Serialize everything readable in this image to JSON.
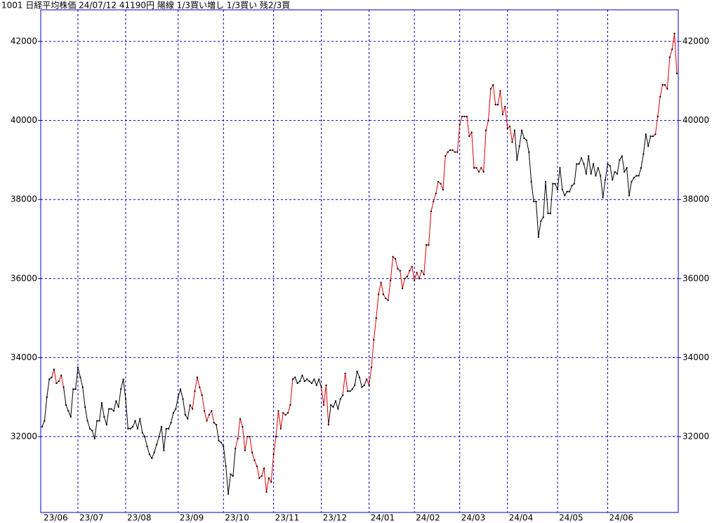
{
  "chart_data": {
    "type": "line",
    "title": "1001 日経平均株価 24/07/12 41190円 陽線 1/3買い増し 1/3買い 残2/3買",
    "ylim": [
      30080,
      42800
    ],
    "yticks": [
      32000,
      34000,
      36000,
      38000,
      40000,
      42000
    ],
    "grid": true,
    "frame_color": "#0000c0",
    "marker_color": "#000000",
    "categories": [
      "23/06",
      null,
      null,
      null,
      null,
      null,
      null,
      null,
      null,
      null,
      null,
      null,
      null,
      null,
      null,
      "23/07",
      null,
      null,
      null,
      null,
      null,
      null,
      null,
      null,
      null,
      null,
      null,
      null,
      null,
      null,
      null,
      null,
      null,
      null,
      null,
      "23/08",
      null,
      null,
      null,
      null,
      null,
      null,
      null,
      null,
      null,
      null,
      null,
      null,
      null,
      null,
      null,
      null,
      null,
      null,
      null,
      null,
      null,
      "23/09",
      null,
      null,
      null,
      null,
      null,
      null,
      null,
      null,
      null,
      null,
      null,
      null,
      null,
      null,
      null,
      null,
      null,
      null,
      "23/10",
      null,
      null,
      null,
      null,
      null,
      null,
      null,
      null,
      null,
      null,
      null,
      null,
      null,
      null,
      null,
      null,
      null,
      null,
      null,
      null,
      "23/11",
      null,
      null,
      null,
      null,
      null,
      null,
      null,
      null,
      null,
      null,
      null,
      null,
      null,
      null,
      null,
      null,
      null,
      null,
      null,
      "23/12",
      null,
      null,
      null,
      null,
      null,
      null,
      null,
      null,
      null,
      null,
      null,
      null,
      null,
      null,
      null,
      null,
      null,
      null,
      null,
      "24/01",
      null,
      null,
      null,
      null,
      null,
      null,
      null,
      null,
      null,
      null,
      null,
      null,
      null,
      null,
      null,
      null,
      null,
      null,
      "24/02",
      null,
      null,
      null,
      null,
      null,
      null,
      null,
      null,
      null,
      null,
      null,
      null,
      null,
      null,
      null,
      null,
      null,
      null,
      "24/03",
      null,
      null,
      null,
      null,
      null,
      null,
      null,
      null,
      null,
      null,
      null,
      null,
      null,
      null,
      null,
      null,
      null,
      null,
      null,
      "24/04",
      null,
      null,
      null,
      null,
      null,
      null,
      null,
      null,
      null,
      null,
      null,
      null,
      null,
      null,
      null,
      null,
      null,
      null,
      null,
      null,
      "24/05",
      null,
      null,
      null,
      null,
      null,
      null,
      null,
      null,
      null,
      null,
      null,
      null,
      null,
      null,
      null,
      null,
      null,
      null,
      null,
      null,
      "24/06",
      null,
      null,
      null,
      null,
      null,
      null,
      null,
      null,
      null,
      null,
      null,
      null,
      null,
      null,
      null,
      null,
      null,
      null,
      null,
      null,
      null,
      null,
      null,
      null,
      null,
      null,
      null,
      null,
      null
    ],
    "values": [
      32250,
      32400,
      33000,
      33450,
      33500,
      33700,
      33350,
      33400,
      33550,
      33250,
      32800,
      32650,
      32500,
      33200,
      33200,
      33750,
      33500,
      33250,
      32750,
      32400,
      32200,
      32150,
      31950,
      32400,
      32400,
      32850,
      32500,
      32300,
      32700,
      32700,
      32650,
      32900,
      32750,
      33200,
      33450,
      32950,
      32200,
      32200,
      32250,
      32400,
      32200,
      32450,
      32100,
      32000,
      31750,
      31550,
      31450,
      31600,
      31800,
      32000,
      32250,
      31650,
      32200,
      32200,
      32350,
      32600,
      32700,
      33000,
      33200,
      32950,
      32550,
      32450,
      32800,
      32700,
      33150,
      33500,
      33250,
      33050,
      32650,
      32400,
      32550,
      32650,
      32350,
      32300,
      31900,
      31850,
      31750,
      31250,
      30550,
      31050,
      31000,
      31700,
      31950,
      32450,
      32250,
      31650,
      32000,
      32000,
      31600,
      31400,
      31250,
      30950,
      31000,
      31200,
      30600,
      30950,
      30850,
      31550,
      32000,
      32650,
      32200,
      32600,
      32550,
      32600,
      32800,
      33450,
      33500,
      33350,
      33400,
      33550,
      33400,
      33450,
      33400,
      33350,
      33450,
      33300,
      33450,
      33250,
      32800,
      33300,
      32300,
      32800,
      32750,
      32900,
      32700,
      32950,
      33050,
      33600,
      33150,
      33150,
      33200,
      33300,
      33650,
      33500,
      33250,
      33300,
      33450,
      33300,
      33750,
      34450,
      35000,
      35600,
      35900,
      35600,
      35500,
      35450,
      35950,
      36550,
      36500,
      36250,
      36200,
      35750,
      36000,
      36050,
      36200,
      36300,
      35950,
      36150,
      36000,
      36200,
      36100,
      36850,
      36850,
      37700,
      37950,
      38150,
      38450,
      38400,
      38250,
      39100,
      39200,
      39250,
      39250,
      39200,
      39200,
      39900,
      40100,
      40100,
      40100,
      39600,
      39700,
      38800,
      38800,
      38700,
      38800,
      38700,
      39750,
      40000,
      40800,
      40900,
      40400,
      40400,
      40750,
      40150,
      40350,
      39800,
      39850,
      39450,
      39750,
      39000,
      39350,
      39750,
      39550,
      39500,
      39200,
      38450,
      37950,
      37950,
      37050,
      37450,
      37550,
      38450,
      37650,
      37650,
      38400,
      38400,
      38250,
      38800,
      38250,
      38100,
      38200,
      38200,
      38350,
      38400,
      38900,
      38900,
      39050,
      38900,
      38650,
      39100,
      38650,
      38900,
      38600,
      38800,
      38600,
      38050,
      38500,
      38900,
      38850,
      38500,
      38700,
      38650,
      39000,
      39100,
      38700,
      38800,
      38100,
      38450,
      38550,
      38600,
      38600,
      38800,
      39150,
      39650,
      39350,
      39600,
      39600,
      39650,
      40100,
      40600,
      40900,
      40900,
      40800,
      41600,
      41800,
      42200,
      41190
    ],
    "colors": [
      "#000",
      "#000",
      "#000",
      "#000",
      "#000",
      "#d00",
      "#d00",
      "#d00",
      "#d00",
      "#d00",
      "#000",
      "#000",
      "#000",
      "#000",
      "#000",
      "#000",
      "#000",
      "#000",
      "#000",
      "#000",
      "#000",
      "#000",
      "#000",
      "#000",
      "#000",
      "#000",
      "#000",
      "#000",
      "#000",
      "#000",
      "#000",
      "#000",
      "#000",
      "#000",
      "#000",
      "#000",
      "#000",
      "#000",
      "#000",
      "#000",
      "#000",
      "#000",
      "#000",
      "#000",
      "#000",
      "#000",
      "#000",
      "#000",
      "#000",
      "#000",
      "#000",
      "#000",
      "#000",
      "#000",
      "#000",
      "#000",
      "#000",
      "#000",
      "#000",
      "#000",
      "#000",
      "#000",
      "#000",
      "#d00",
      "#d00",
      "#d00",
      "#d00",
      "#d00",
      "#d00",
      "#d00",
      "#d00",
      "#d00",
      "#d00",
      "#000",
      "#000",
      "#000",
      "#000",
      "#000",
      "#000",
      "#000",
      "#000",
      "#000",
      "#d00",
      "#d00",
      "#d00",
      "#d00",
      "#d00",
      "#d00",
      "#d00",
      "#d00",
      "#d00",
      "#d00",
      "#d00",
      "#d00",
      "#d00",
      "#d00",
      "#d00",
      "#d00",
      "#d00",
      "#d00",
      "#d00",
      "#d00",
      "#d00",
      "#d00",
      "#d00",
      "#d00",
      "#000",
      "#000",
      "#000",
      "#000",
      "#000",
      "#000",
      "#000",
      "#000",
      "#000",
      "#000",
      "#000",
      "#000",
      "#d00",
      "#d00",
      "#d00",
      "#000",
      "#000",
      "#000",
      "#000",
      "#000",
      "#000",
      "#d00",
      "#d00",
      "#000",
      "#000",
      "#000",
      "#000",
      "#000",
      "#000",
      "#000",
      "#000",
      "#d00",
      "#d00",
      "#d00",
      "#d00",
      "#d00",
      "#d00",
      "#d00",
      "#d00",
      "#d00",
      "#d00",
      "#d00",
      "#d00",
      "#d00",
      "#d00",
      "#d00",
      "#d00",
      "#d00",
      "#d00",
      "#d00",
      "#d00",
      "#d00",
      "#d00",
      "#d00",
      "#d00",
      "#d00",
      "#d00",
      "#d00",
      "#d00",
      "#d00",
      "#d00",
      "#d00",
      "#d00",
      "#d00",
      "#d00",
      "#d00",
      "#d00",
      "#d00",
      "#d00",
      "#d00",
      "#d00",
      "#d00",
      "#d00",
      "#d00",
      "#d00",
      "#d00",
      "#d00",
      "#d00",
      "#d00",
      "#d00",
      "#d00",
      "#d00",
      "#d00",
      "#d00",
      "#d00",
      "#d00",
      "#d00",
      "#d00",
      "#d00",
      "#d00",
      "#d00",
      "#d00",
      "#d00",
      "#000",
      "#000",
      "#000",
      "#000",
      "#000",
      "#000",
      "#000",
      "#000",
      "#000",
      "#000",
      "#000",
      "#000",
      "#000",
      "#000",
      "#000",
      "#000",
      "#000",
      "#000",
      "#000",
      "#000",
      "#000",
      "#000",
      "#000",
      "#000",
      "#000",
      "#000",
      "#000",
      "#000",
      "#000",
      "#000",
      "#000",
      "#000",
      "#000",
      "#000",
      "#000",
      "#000",
      "#000",
      "#000",
      "#000",
      "#000",
      "#000",
      "#000",
      "#000",
      "#000",
      "#000",
      "#000",
      "#000",
      "#000",
      "#000",
      "#000",
      "#000",
      "#000",
      "#000",
      "#000",
      "#000",
      "#000",
      "#000",
      "#000",
      "#d00",
      "#d00",
      "#d00",
      "#d00",
      "#d00",
      "#d00",
      "#d00",
      "#d00",
      "#d00",
      "#d00"
    ]
  }
}
